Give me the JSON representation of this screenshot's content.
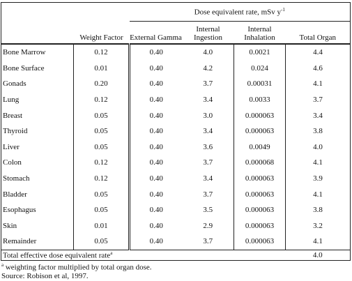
{
  "table": {
    "group_header": "Dose equivalent rate, mSv y",
    "group_header_sup": "-1",
    "columns": [
      "Weight Factor",
      "External Gamma",
      "Internal Ingestion",
      "Internal Inhalation",
      "Total Organ"
    ],
    "rows": [
      [
        "Bone Marrow",
        "0.12",
        "0.40",
        "4.0",
        "0.0021",
        "4.4"
      ],
      [
        "Bone Surface",
        "0.01",
        "0.40",
        "4.2",
        "0.024",
        "4.6"
      ],
      [
        "Gonads",
        "0.20",
        "0.40",
        "3.7",
        "0.00031",
        "4.1"
      ],
      [
        "Lung",
        "0.12",
        "0.40",
        "3.4",
        "0.0033",
        "3.7"
      ],
      [
        "Breast",
        "0.05",
        "0.40",
        "3.0",
        "0.000063",
        "3.4"
      ],
      [
        "Thyroid",
        "0.05",
        "0.40",
        "3.4",
        "0.000063",
        "3.8"
      ],
      [
        "Liver",
        "0.05",
        "0.40",
        "3.6",
        "0.0049",
        "4.0"
      ],
      [
        "Colon",
        "0.12",
        "0.40",
        "3.7",
        "0.000068",
        "4.1"
      ],
      [
        "Stomach",
        "0.12",
        "0.40",
        "3.4",
        "0.000063",
        "3.9"
      ],
      [
        "Bladder",
        "0.05",
        "0.40",
        "3.7",
        "0.000063",
        "4.1"
      ],
      [
        "Esophagus",
        "0.05",
        "0.40",
        "3.5",
        "0.000063",
        "3.8"
      ],
      [
        "Skin",
        "0.01",
        "0.40",
        "2.9",
        "0.000063",
        "3.2"
      ],
      [
        "Remainder",
        "0.05",
        "0.40",
        "3.7",
        "0.000063",
        "4.1"
      ]
    ],
    "total_label": "Total effective dose equivalent rate",
    "total_label_sup": "a",
    "total_value": "4.0"
  },
  "footnotes": {
    "marker": "a",
    "note": " weighting factor multiplied by total organ dose.",
    "source": "Source: Robison et al, 1997."
  }
}
